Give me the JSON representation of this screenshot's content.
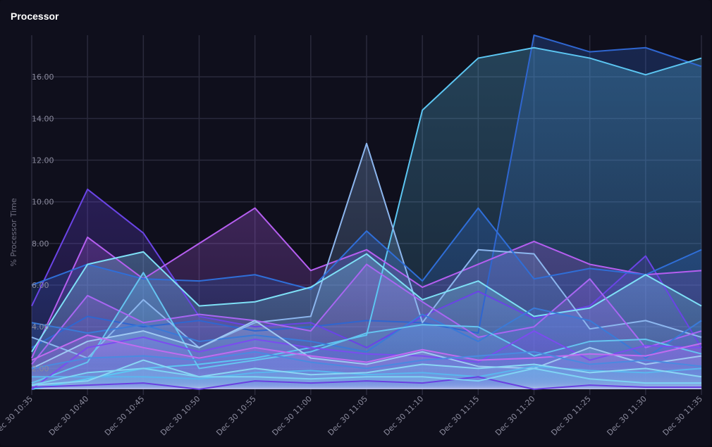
{
  "title": "Processor",
  "chart_data": {
    "type": "area",
    "title": "Processor",
    "ylabel": "% Processor Time",
    "xlabel": "",
    "ylim": [
      1,
      18
    ],
    "grid": true,
    "legend": "none",
    "yticks": [
      "2.00",
      "4.00",
      "6.00",
      "8.00",
      "10.00",
      "12.00",
      "14.00",
      "16.00"
    ],
    "ytick_values": [
      2,
      4,
      6,
      8,
      10,
      12,
      14,
      16
    ],
    "x": [
      "Dec 30 10:35",
      "Dec 30 10:40",
      "Dec 30 10:45",
      "Dec 30 10:50",
      "Dec 30 10:55",
      "Dec 30 11:00",
      "Dec 30 11:05",
      "Dec 30 11:10",
      "Dec 30 11:15",
      "Dec 30 11:20",
      "Dec 30 11:25",
      "Dec 30 11:30",
      "Dec 30 11:35"
    ],
    "series": [
      {
        "color": "#2f66d0",
        "values": [
          3.0,
          4.5,
          4.0,
          4.3,
          3.8,
          4.0,
          4.3,
          4.2,
          3.7,
          18.0,
          17.2,
          17.4,
          16.5
        ]
      },
      {
        "color": "#5cc6f2",
        "values": [
          1.0,
          1.5,
          2.0,
          2.2,
          2.5,
          3.0,
          3.6,
          14.4,
          16.9,
          17.4,
          16.9,
          16.1,
          16.9
        ]
      },
      {
        "color": "#6a44e6",
        "values": [
          5.0,
          10.6,
          8.5,
          4.5,
          4.0,
          4.2,
          3.0,
          4.5,
          5.7,
          4.4,
          5.0,
          7.4,
          3.0
        ]
      },
      {
        "color": "#b55ef0",
        "values": [
          2.5,
          8.3,
          6.3,
          8.0,
          9.7,
          6.7,
          7.7,
          5.9,
          7.0,
          8.1,
          7.0,
          6.5,
          6.7
        ]
      },
      {
        "color": "#8cb6ee",
        "values": [
          3.5,
          2.5,
          5.3,
          3.0,
          4.2,
          4.5,
          12.8,
          4.2,
          7.7,
          7.5,
          3.9,
          4.3,
          3.5
        ]
      },
      {
        "color": "#2f6ed8",
        "values": [
          6.0,
          7.0,
          6.3,
          6.2,
          6.5,
          5.8,
          8.6,
          6.2,
          9.7,
          6.3,
          6.8,
          6.5,
          7.7
        ]
      },
      {
        "color": "#7ee0f6",
        "values": [
          2.8,
          7.0,
          7.6,
          5.0,
          5.2,
          5.9,
          7.5,
          5.3,
          6.2,
          4.5,
          4.9,
          6.5,
          5.0
        ]
      },
      {
        "color": "#a866f2",
        "values": [
          2.2,
          5.5,
          4.2,
          4.6,
          4.3,
          3.8,
          7.0,
          5.2,
          3.5,
          4.0,
          6.3,
          3.0,
          3.8
        ]
      },
      {
        "color": "#3a7ad8",
        "values": [
          4.2,
          3.7,
          4.1,
          3.3,
          3.6,
          3.3,
          2.8,
          4.6,
          3.3,
          4.9,
          4.3,
          2.5,
          4.3
        ]
      },
      {
        "color": "#65c4f0",
        "values": [
          1.3,
          2.3,
          6.6,
          2.0,
          2.4,
          2.8,
          3.7,
          4.1,
          4.0,
          2.6,
          3.3,
          3.4,
          2.7
        ]
      },
      {
        "color": "#7b4cf0",
        "values": [
          1.0,
          3.0,
          3.5,
          2.8,
          3.4,
          3.0,
          2.7,
          2.6,
          2.3,
          3.8,
          2.4,
          3.1,
          3.0
        ]
      },
      {
        "color": "#9fc8f2",
        "values": [
          2.0,
          3.3,
          3.8,
          3.0,
          4.3,
          2.5,
          2.2,
          2.8,
          2.1,
          2.0,
          3.0,
          2.2,
          2.6
        ]
      },
      {
        "color": "#c06cf0",
        "values": [
          2.4,
          3.6,
          3.0,
          2.5,
          3.0,
          2.6,
          2.3,
          2.9,
          2.4,
          2.5,
          2.7,
          2.6,
          3.2
        ]
      },
      {
        "color": "#5ab6ee",
        "values": [
          1.6,
          1.6,
          1.6,
          1.5,
          1.8,
          1.9,
          1.7,
          1.8,
          1.6,
          2.1,
          1.9,
          1.8,
          2.0
        ]
      },
      {
        "color": "#8ad6f4",
        "values": [
          1.2,
          1.4,
          2.4,
          1.6,
          2.0,
          1.7,
          1.8,
          2.2,
          2.0,
          2.2,
          1.8,
          2.0,
          1.6
        ]
      },
      {
        "color": "#6a40e0",
        "values": [
          1.1,
          1.2,
          1.3,
          1.0,
          1.4,
          1.3,
          1.4,
          1.3,
          1.6,
          1.0,
          1.2,
          1.1,
          1.1
        ]
      },
      {
        "color": "#7fd4f4",
        "values": [
          1.2,
          1.8,
          2.0,
          1.6,
          1.6,
          1.5,
          1.6,
          1.6,
          1.4,
          2.0,
          1.5,
          1.3,
          1.3
        ]
      },
      {
        "color": "#4a8ae0",
        "values": [
          2.0,
          2.5,
          2.6,
          2.4,
          2.8,
          2.3,
          2.0,
          2.4,
          2.6,
          2.8,
          2.2,
          2.4,
          2.1
        ]
      }
    ]
  }
}
